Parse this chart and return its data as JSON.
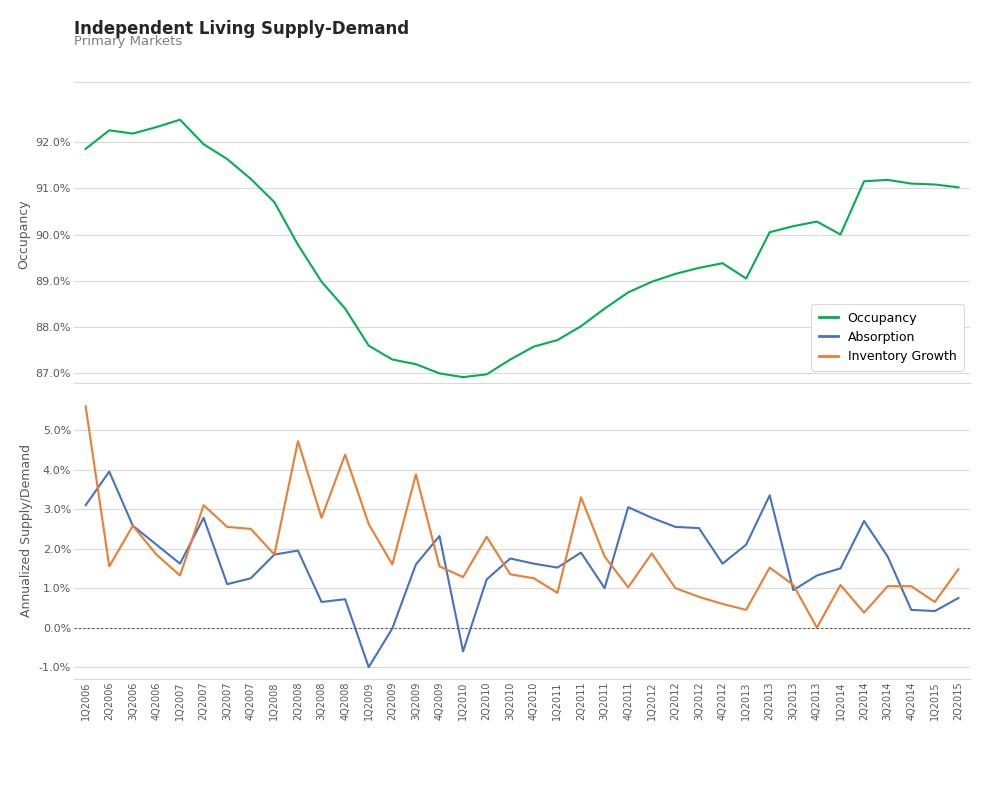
{
  "title": "Independent Living Supply-Demand",
  "subtitle": "Primary Markets",
  "title_color": "#262626",
  "subtitle_color": "#7f7f7f",
  "background_color": "#ffffff",
  "grid_color": "#d9d9d9",
  "categories": [
    "1Q2006",
    "2Q2006",
    "3Q2006",
    "4Q2006",
    "1Q2007",
    "2Q2007",
    "3Q2007",
    "4Q2007",
    "1Q2008",
    "2Q2008",
    "3Q2008",
    "4Q2008",
    "1Q2009",
    "2Q2009",
    "3Q2009",
    "4Q2009",
    "1Q2010",
    "2Q2010",
    "3Q2010",
    "4Q2010",
    "1Q2011",
    "2Q2011",
    "3Q2011",
    "4Q2011",
    "1Q2012",
    "2Q2012",
    "3Q2012",
    "4Q2012",
    "1Q2013",
    "2Q2013",
    "3Q2013",
    "4Q2013",
    "1Q2014",
    "2Q2014",
    "3Q2014",
    "4Q2014",
    "1Q2015",
    "2Q2015"
  ],
  "occupancy": [
    0.9185,
    0.9225,
    0.9218,
    0.9232,
    0.9248,
    0.9195,
    0.9163,
    0.912,
    0.907,
    0.8978,
    0.8898,
    0.884,
    0.876,
    0.873,
    0.872,
    0.87,
    0.8692,
    0.8698,
    0.873,
    0.8758,
    0.8772,
    0.8802,
    0.884,
    0.8875,
    0.8898,
    0.8915,
    0.8928,
    0.8938,
    0.8905,
    0.9005,
    0.9018,
    0.9028,
    0.9,
    0.9115,
    0.9118,
    0.911,
    0.9108,
    0.9102
  ],
  "absorption": [
    0.031,
    0.0395,
    0.0258,
    0.021,
    0.0162,
    0.0278,
    0.011,
    0.0125,
    0.0185,
    0.0195,
    0.0065,
    0.0072,
    -0.01,
    -0.0002,
    0.016,
    0.0232,
    -0.006,
    0.0122,
    0.0175,
    0.0162,
    0.0152,
    0.019,
    0.01,
    0.0305,
    0.0278,
    0.0255,
    0.0252,
    0.0162,
    0.021,
    0.0335,
    0.0095,
    0.0132,
    0.015,
    0.027,
    0.018,
    0.0045,
    0.0042,
    0.0075
  ],
  "inventory_growth": [
    0.056,
    0.0155,
    0.0258,
    0.0185,
    0.0132,
    0.031,
    0.0255,
    0.025,
    0.0185,
    0.0472,
    0.0278,
    0.0438,
    0.0262,
    0.016,
    0.0388,
    0.0155,
    0.0128,
    0.023,
    0.0135,
    0.0125,
    0.0088,
    0.033,
    0.018,
    0.0102,
    0.0188,
    0.01,
    0.0078,
    0.006,
    0.0045,
    0.0152,
    0.0108,
    0.0,
    0.0108,
    0.0038,
    0.0105,
    0.0105,
    0.0065,
    0.0148
  ],
  "occupancy_color": "#00b050",
  "absorption_color": "#4472c4",
  "inventory_color": "#ed7d31",
  "occupancy_ylim": [
    0.868,
    0.932
  ],
  "supply_ylim": [
    -0.013,
    0.062
  ],
  "occupancy_yticks": [
    0.87,
    0.88,
    0.89,
    0.9,
    0.91,
    0.92
  ],
  "supply_yticks": [
    -0.01,
    0.0,
    0.01,
    0.02,
    0.03,
    0.04,
    0.05
  ]
}
